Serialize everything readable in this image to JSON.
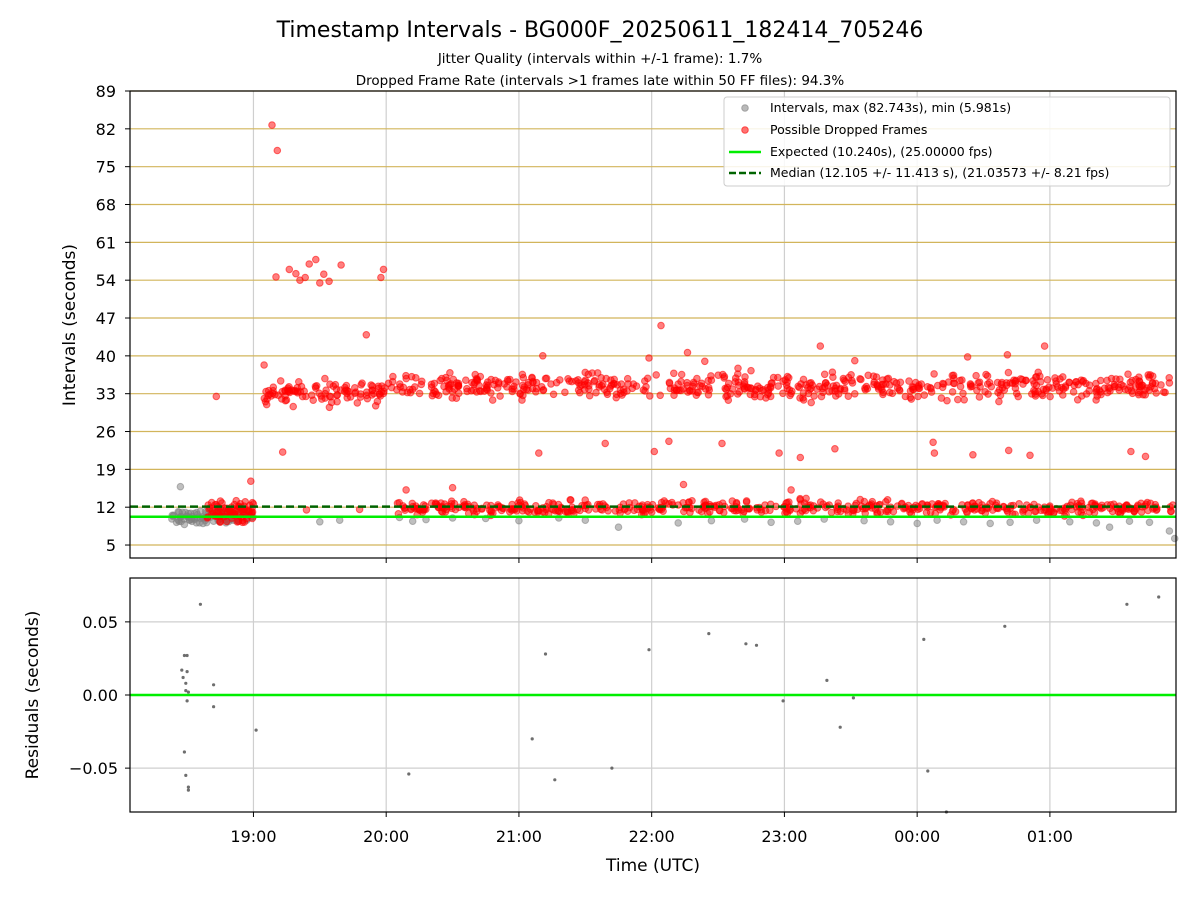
{
  "figure": {
    "title": "Timestamp Intervals - BG000F_20250611_182414_705246",
    "subtitle_1": "Jitter Quality (intervals within +/-1 frame): 1.7%",
    "subtitle_2": "Dropped Frame Rate (intervals >1 frames late within 50 FF files): 94.3%",
    "xlabel": "Time (UTC)"
  },
  "colors": {
    "intervals": "#808080",
    "dropped": "#ff0000",
    "expected": "#00ee00",
    "median": "#006400",
    "hgrid_top": "#d2b55b",
    "vgrid": "#cfcfcf"
  },
  "chart_data": [
    {
      "type": "scatter",
      "panel": "top",
      "ylabel": "Intervals (seconds)",
      "x_ticks": [
        "19:00",
        "20:00",
        "21:00",
        "22:00",
        "23:00",
        "00:00",
        "01:00"
      ],
      "x_tick_hours": [
        19,
        20,
        21,
        22,
        23,
        24,
        25
      ],
      "xlim_hours": [
        18.07,
        25.95
      ],
      "y_ticks": [
        5,
        12,
        19,
        26,
        33,
        40,
        47,
        54,
        61,
        68,
        75,
        82,
        89
      ],
      "ylim": [
        2.6,
        89
      ],
      "grid": true,
      "legend_position": "top-right",
      "legend": [
        "Intervals, max (82.743s), min (5.981s)",
        "Possible Dropped Frames",
        "Expected (10.240s), (25.00000 fps)",
        "Median (12.105 +/- 11.413 s), (21.03573 +/- 8.21 fps)"
      ],
      "expected_line_y": 10.24,
      "median_line_y": 12.105,
      "series": [
        {
          "name": "Intervals, max (82.743s), min (5.981s)",
          "points": [
            [
              18.45,
              15.8
            ],
            [
              18.4,
              10.5
            ],
            [
              18.42,
              9.2
            ],
            [
              18.48,
              8.8
            ],
            [
              18.52,
              9.6
            ],
            [
              18.58,
              10.1
            ],
            [
              18.62,
              9.0
            ],
            [
              18.7,
              9.4
            ],
            [
              18.76,
              10.3
            ],
            [
              18.82,
              9.8
            ],
            [
              18.88,
              10.2
            ],
            [
              18.95,
              9.6
            ],
            [
              19.5,
              9.3
            ],
            [
              19.65,
              9.6
            ],
            [
              20.1,
              10.1
            ],
            [
              20.2,
              9.4
            ],
            [
              20.3,
              9.7
            ],
            [
              20.5,
              10.0
            ],
            [
              20.75,
              9.9
            ],
            [
              21.0,
              9.5
            ],
            [
              21.3,
              10.0
            ],
            [
              21.5,
              9.6
            ],
            [
              21.75,
              8.3
            ],
            [
              22.2,
              9.1
            ],
            [
              22.45,
              9.5
            ],
            [
              22.7,
              9.8
            ],
            [
              22.9,
              9.2
            ],
            [
              23.1,
              9.4
            ],
            [
              23.3,
              9.8
            ],
            [
              23.6,
              9.5
            ],
            [
              23.8,
              9.3
            ],
            [
              24.0,
              9.0
            ],
            [
              24.15,
              9.6
            ],
            [
              24.35,
              9.3
            ],
            [
              24.55,
              9.0
            ],
            [
              24.7,
              9.2
            ],
            [
              24.9,
              9.6
            ],
            [
              25.15,
              9.3
            ],
            [
              25.35,
              9.1
            ],
            [
              25.45,
              8.3
            ],
            [
              25.6,
              9.4
            ],
            [
              25.75,
              9.2
            ],
            [
              25.9,
              7.6
            ],
            [
              25.94,
              6.2
            ]
          ]
        },
        {
          "name": "Possible Dropped Frames",
          "points": [
            [
              18.72,
              32.5
            ],
            [
              18.98,
              16.8
            ],
            [
              19.08,
              38.3
            ],
            [
              19.14,
              82.7
            ],
            [
              19.18,
              78.0
            ],
            [
              19.17,
              54.6
            ],
            [
              19.22,
              22.2
            ],
            [
              19.27,
              56.0
            ],
            [
              19.32,
              55.2
            ],
            [
              19.35,
              54.0
            ],
            [
              19.39,
              54.5
            ],
            [
              19.42,
              57.0
            ],
            [
              19.47,
              57.8
            ],
            [
              19.5,
              53.5
            ],
            [
              19.53,
              55.1
            ],
            [
              19.57,
              53.8
            ],
            [
              19.66,
              56.8
            ],
            [
              19.85,
              43.9
            ],
            [
              19.96,
              54.5
            ],
            [
              19.98,
              56.0
            ],
            [
              20.15,
              15.2
            ],
            [
              20.5,
              15.6
            ],
            [
              21.15,
              22.0
            ],
            [
              21.18,
              40.0
            ],
            [
              21.65,
              23.8
            ],
            [
              21.98,
              39.6
            ],
            [
              22.02,
              22.3
            ],
            [
              22.07,
              45.6
            ],
            [
              22.13,
              24.2
            ],
            [
              22.24,
              16.2
            ],
            [
              22.27,
              40.6
            ],
            [
              22.4,
              39.0
            ],
            [
              22.53,
              23.8
            ],
            [
              22.65,
              37.7
            ],
            [
              22.96,
              22.0
            ],
            [
              23.05,
              15.2
            ],
            [
              23.12,
              21.2
            ],
            [
              23.27,
              41.8
            ],
            [
              23.38,
              22.8
            ],
            [
              23.53,
              39.1
            ],
            [
              24.12,
              24.0
            ],
            [
              24.13,
              22.0
            ],
            [
              24.38,
              39.8
            ],
            [
              24.42,
              21.7
            ],
            [
              24.68,
              40.2
            ],
            [
              24.69,
              22.5
            ],
            [
              24.85,
              21.6
            ],
            [
              24.96,
              41.8
            ],
            [
              25.61,
              22.3
            ],
            [
              25.72,
              21.4
            ],
            [
              19.3,
              33.5
            ],
            [
              19.45,
              31.8
            ],
            [
              19.7,
              34.5
            ],
            [
              19.95,
              33.0
            ],
            [
              20.2,
              33.8
            ],
            [
              20.45,
              36.0
            ],
            [
              20.7,
              34.5
            ],
            [
              20.95,
              33.4
            ],
            [
              21.2,
              35.8
            ],
            [
              21.45,
              35.0
            ],
            [
              21.7,
              34.6
            ],
            [
              21.95,
              33.5
            ],
            [
              22.2,
              34.8
            ],
            [
              22.45,
              35.5
            ],
            [
              22.7,
              34.8
            ],
            [
              22.95,
              36.0
            ],
            [
              23.2,
              34.0
            ],
            [
              23.45,
              35.5
            ],
            [
              23.7,
              34.5
            ],
            [
              23.95,
              33.5
            ],
            [
              24.2,
              34.8
            ],
            [
              24.45,
              33.6
            ],
            [
              24.7,
              35.0
            ],
            [
              24.95,
              33.8
            ],
            [
              25.2,
              35.2
            ],
            [
              25.45,
              34.0
            ],
            [
              25.7,
              34.5
            ],
            [
              25.9,
              35.0
            ],
            [
              18.8,
              11.8
            ],
            [
              19.0,
              12.6
            ],
            [
              19.4,
              11.5
            ],
            [
              19.8,
              11.6
            ],
            [
              20.2,
              12.1
            ],
            [
              20.6,
              11.9
            ],
            [
              21.0,
              12.3
            ],
            [
              21.4,
              12.0
            ],
            [
              21.8,
              11.7
            ],
            [
              22.2,
              12.4
            ],
            [
              22.6,
              11.8
            ],
            [
              23.0,
              12.1
            ],
            [
              23.4,
              11.6
            ],
            [
              23.8,
              12.0
            ],
            [
              24.2,
              12.3
            ],
            [
              24.6,
              11.8
            ],
            [
              25.0,
              12.2
            ],
            [
              25.4,
              11.9
            ],
            [
              25.8,
              12.0
            ]
          ],
          "bands": [
            {
              "x_from": 18.65,
              "x_to": 19.0,
              "y_center": 11.2,
              "spread": 1.6,
              "count": 80
            },
            {
              "x_from": 19.08,
              "x_to": 20.0,
              "y_center": 33.2,
              "spread": 1.8,
              "count": 100
            },
            {
              "x_from": 20.0,
              "x_to": 25.93,
              "y_center": 34.3,
              "spread": 1.9,
              "count": 560
            },
            {
              "x_from": 20.08,
              "x_to": 25.93,
              "y_center": 11.9,
              "spread": 1.1,
              "count": 520
            }
          ]
        }
      ]
    },
    {
      "type": "scatter",
      "panel": "bottom",
      "ylabel": "Residuals (seconds)",
      "x_ticks": [
        "19:00",
        "20:00",
        "21:00",
        "22:00",
        "23:00",
        "00:00",
        "01:00"
      ],
      "x_tick_hours": [
        19,
        20,
        21,
        22,
        23,
        24,
        25
      ],
      "xlim_hours": [
        18.07,
        25.95
      ],
      "y_tick_values": [
        0.05,
        0.0,
        -0.05
      ],
      "y_tick_labels": [
        "0.05",
        "0.00",
        "−0.05"
      ],
      "ylim": [
        -0.08,
        0.08
      ],
      "zero_line": 0.0,
      "grid": true,
      "series": [
        {
          "name": "",
          "points": [
            [
              18.48,
              0.027
            ],
            [
              18.5,
              0.027
            ],
            [
              18.46,
              0.017
            ],
            [
              18.47,
              0.012
            ],
            [
              18.49,
              0.008
            ],
            [
              18.49,
              0.003
            ],
            [
              18.51,
              0.002
            ],
            [
              18.5,
              -0.004
            ],
            [
              18.5,
              0.016
            ],
            [
              18.48,
              -0.039
            ],
            [
              18.49,
              -0.055
            ],
            [
              18.51,
              -0.063
            ],
            [
              18.51,
              -0.065
            ],
            [
              18.6,
              0.062
            ],
            [
              18.7,
              0.007
            ],
            [
              18.7,
              -0.008
            ],
            [
              19.02,
              -0.024
            ],
            [
              20.17,
              -0.054
            ],
            [
              21.1,
              -0.03
            ],
            [
              21.2,
              0.028
            ],
            [
              21.27,
              -0.058
            ],
            [
              21.7,
              -0.05
            ],
            [
              21.98,
              0.031
            ],
            [
              22.43,
              0.042
            ],
            [
              22.71,
              0.035
            ],
            [
              22.79,
              0.034
            ],
            [
              22.99,
              -0.004
            ],
            [
              23.32,
              0.01
            ],
            [
              23.42,
              -0.022
            ],
            [
              23.52,
              -0.002
            ],
            [
              24.05,
              0.038
            ],
            [
              24.08,
              -0.052
            ],
            [
              24.22,
              -0.08
            ],
            [
              24.66,
              0.047
            ],
            [
              25.58,
              0.062
            ],
            [
              25.82,
              0.067
            ]
          ]
        }
      ]
    }
  ]
}
